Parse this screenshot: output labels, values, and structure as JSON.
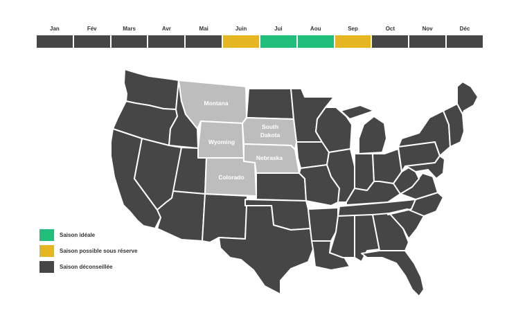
{
  "colors": {
    "ideal": "#21BD7B",
    "possible": "#E6B622",
    "discouraged": "#464646",
    "highlight": "#BDBDBD"
  },
  "months": [
    {
      "label": "Jan",
      "status": "discouraged"
    },
    {
      "label": "Fév",
      "status": "discouraged"
    },
    {
      "label": "Mars",
      "status": "discouraged"
    },
    {
      "label": "Avr",
      "status": "discouraged"
    },
    {
      "label": "Mai",
      "status": "discouraged"
    },
    {
      "label": "Juin",
      "status": "possible"
    },
    {
      "label": "Jui",
      "status": "ideal"
    },
    {
      "label": "Aou",
      "status": "ideal"
    },
    {
      "label": "Sep",
      "status": "possible"
    },
    {
      "label": "Oct",
      "status": "discouraged"
    },
    {
      "label": "Nov",
      "status": "discouraged"
    },
    {
      "label": "Déc",
      "status": "discouraged"
    }
  ],
  "highlighted_states": {
    "montana": "Montana",
    "wyoming": "Wyoming",
    "south_dakota_line1": "South",
    "south_dakota_line2": "Dakota",
    "nebraska": "Nebraska",
    "colorado": "Colorado"
  },
  "legend": [
    {
      "label": "Saison idéale",
      "status": "ideal"
    },
    {
      "label": "Saison possible sous réserve",
      "status": "possible"
    },
    {
      "label": "Saison déconseillée",
      "status": "discouraged"
    }
  ]
}
